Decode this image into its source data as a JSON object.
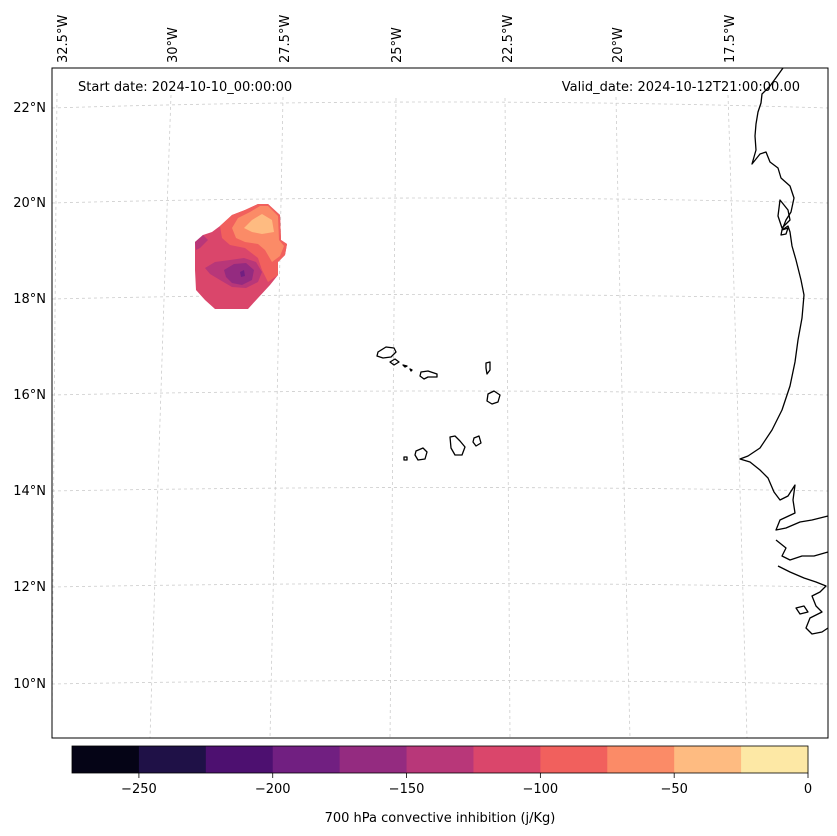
{
  "header": {
    "start_date": "Start date: 2024-10-10_00:00:00",
    "valid_date": "Valid_date: 2024-10-12T21:00:00.00"
  },
  "lon_labels": [
    "32.5°W",
    "30°W",
    "27.5°W",
    "25°W",
    "22.5°W",
    "20°W",
    "17.5°W"
  ],
  "lat_labels": [
    "22°N",
    "20°N",
    "18°N",
    "16°N",
    "14°N",
    "12°N",
    "10°N"
  ],
  "colorbar": {
    "label": "700 hPa convective inhibition (j/Kg)",
    "tick_labels": [
      "−250",
      "−200",
      "−150",
      "−100",
      "−50",
      "0"
    ],
    "levels": [
      -275,
      -250,
      -225,
      -200,
      -175,
      -150,
      -125,
      -100,
      -75,
      -50,
      -25,
      0
    ],
    "colors": [
      "#050416",
      "#1f1147",
      "#4d1070",
      "#711f81",
      "#942b80",
      "#b83779",
      "#da466b",
      "#f1605d",
      "#fb8b67",
      "#febb81",
      "#fde8a5"
    ]
  },
  "chart_data": {
    "type": "heatmap",
    "variable": "700 hPa convective inhibition",
    "units": "j/Kg",
    "colorbar_range": [
      -275,
      0
    ],
    "lon_ticks": [
      -32.5,
      -30,
      -27.5,
      -25,
      -22.5,
      -20,
      -17.5
    ],
    "lat_ticks": [
      22,
      20,
      18,
      16,
      14,
      12,
      10
    ],
    "cin_region": {
      "approx_center_lon": -29.0,
      "approx_center_lat": 18.6,
      "min_value_approx": -175,
      "max_value_approx": -25
    }
  }
}
